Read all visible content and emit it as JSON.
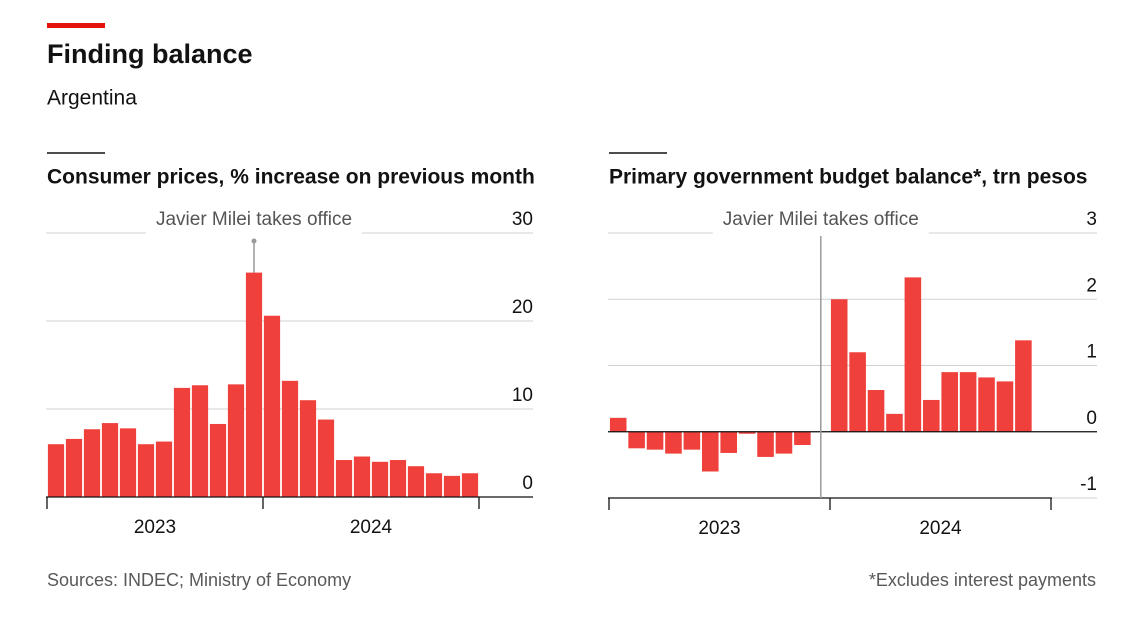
{
  "title": "Finding balance",
  "subtitle": "Argentina",
  "source": "Sources: INDEC; Ministry of Economy",
  "footnote": "*Excludes interest payments",
  "chart_data": [
    {
      "type": "bar",
      "title": "Consumer prices, % increase on previous month",
      "categories": [
        null,
        null,
        null,
        null,
        null,
        null,
        null,
        null,
        null,
        null,
        null,
        null,
        null,
        null,
        null,
        null,
        null,
        null,
        null,
        null,
        null,
        null,
        null,
        null
      ],
      "year_labels": [
        "2023",
        "2024"
      ],
      "values": [
        6.0,
        6.6,
        7.7,
        8.4,
        7.8,
        6.0,
        6.3,
        12.4,
        12.7,
        8.3,
        12.8,
        25.5,
        20.6,
        13.2,
        11.0,
        8.8,
        4.2,
        4.6,
        4.0,
        4.2,
        3.5,
        2.7,
        2.4,
        2.7
      ],
      "color": "#f0403c",
      "ylim": [
        0,
        30
      ],
      "yticks": [
        0,
        10,
        20,
        30
      ],
      "grid": true,
      "annotation": {
        "text": "Javier Milei takes office",
        "index": 11
      }
    },
    {
      "type": "bar",
      "title": "Primary government budget balance*, trn pesos",
      "categories": [
        null,
        null,
        null,
        null,
        null,
        null,
        null,
        null,
        null,
        null,
        null,
        null,
        null,
        null,
        null,
        null,
        null,
        null,
        null,
        null,
        null,
        null,
        null,
        null
      ],
      "year_labels": [
        "2023",
        "2024"
      ],
      "values": [
        0.21,
        -0.25,
        -0.27,
        -0.33,
        -0.27,
        -0.6,
        -0.32,
        -0.03,
        -0.38,
        -0.33,
        -0.2,
        null,
        2.0,
        1.2,
        0.63,
        0.27,
        2.33,
        0.48,
        0.9,
        0.9,
        0.82,
        0.76,
        1.38,
        null
      ],
      "color": "#f0403c",
      "ylim": [
        -1,
        3
      ],
      "yticks": [
        -1,
        0,
        1,
        2,
        3
      ],
      "grid": true,
      "annotation": {
        "text": "Javier Milei takes office",
        "index": 11
      }
    }
  ]
}
